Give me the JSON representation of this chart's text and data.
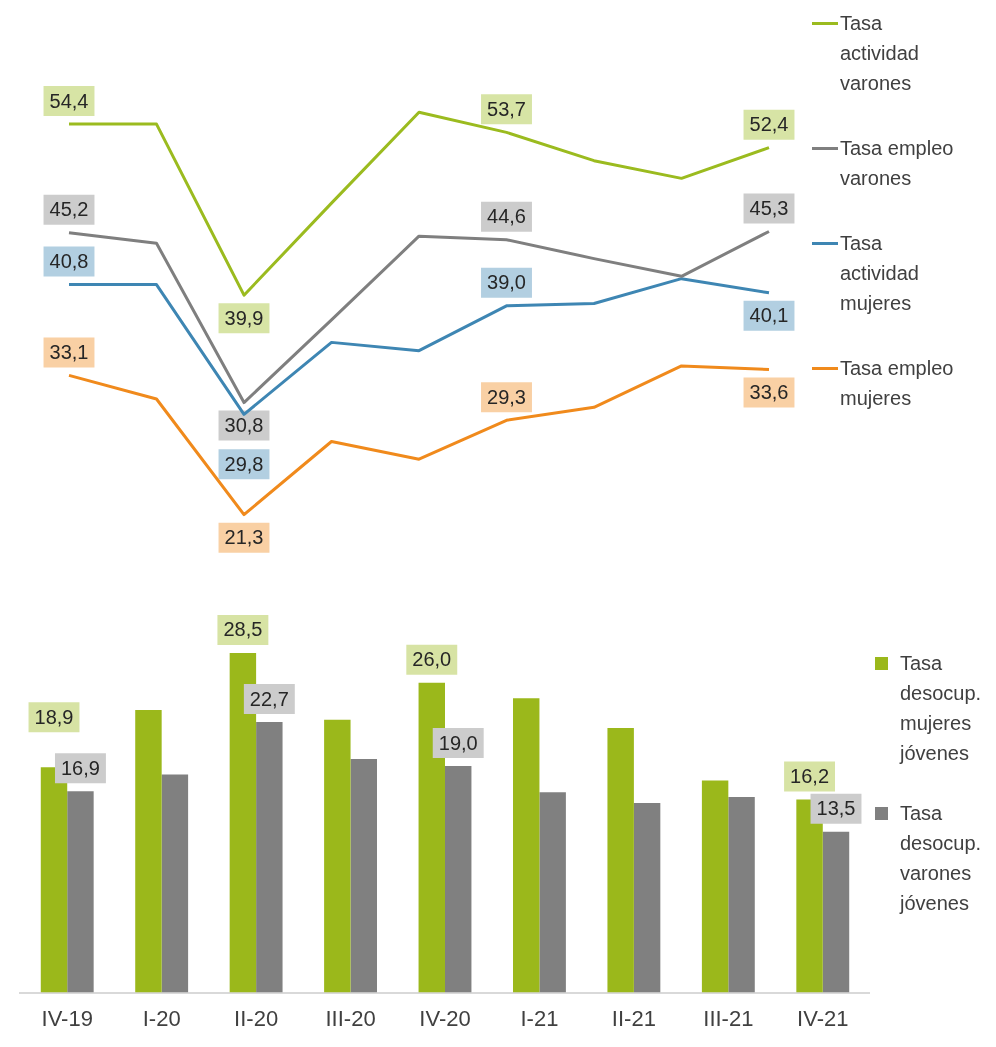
{
  "chart_data": [
    {
      "type": "line",
      "categories": [
        null,
        null,
        null,
        null,
        null,
        null,
        null,
        null,
        null
      ],
      "tick_labels": false,
      "grid": false,
      "legend": "right",
      "marker": "none",
      "series": [
        {
          "name": "Tasa actividad varones",
          "color": "#9bbb1f",
          "values": [
            54.4,
            54.4,
            39.9,
            47.7,
            55.4,
            53.7,
            51.3,
            49.8,
            52.4
          ],
          "value_labels": [
            "54,4",
            null,
            "39,9",
            null,
            null,
            "53,7",
            null,
            null,
            "52,4"
          ]
        },
        {
          "name": "Tasa empleo varones",
          "color": "#7f7f7f",
          "values": [
            45.2,
            44.3,
            30.8,
            37.8,
            44.9,
            44.6,
            43.0,
            41.5,
            45.3
          ],
          "value_labels": [
            "45,2",
            null,
            "30,8",
            null,
            null,
            "44,6",
            null,
            null,
            "45,3"
          ]
        },
        {
          "name": "Tasa actividad mujeres",
          "color": "#3e86b3",
          "values": [
            40.8,
            40.8,
            29.8,
            35.9,
            35.2,
            39.0,
            39.2,
            41.3,
            40.1
          ],
          "value_labels": [
            "40,8",
            null,
            "29,8",
            null,
            null,
            "39,0",
            null,
            null,
            "40,1"
          ]
        },
        {
          "name": "Tasa empleo mujeres",
          "color": "#f08a1c",
          "values": [
            33.1,
            31.1,
            21.3,
            27.5,
            26.0,
            29.3,
            30.4,
            33.9,
            33.6
          ],
          "value_labels": [
            "33,1",
            null,
            "21,3",
            null,
            null,
            "29,3",
            null,
            null,
            "33,6"
          ]
        }
      ]
    },
    {
      "type": "bar",
      "categories": [
        "IV-19",
        "I-20",
        "II-20",
        "III-20",
        "IV-20",
        "I-21",
        "II-21",
        "III-21",
        "IV-21"
      ],
      "tick_labels": "x",
      "grid": false,
      "legend": "right",
      "series": [
        {
          "name": "Tasa desocup. mujeres jóvenes",
          "color": "#9bb81b",
          "values": [
            18.9,
            23.7,
            28.5,
            22.9,
            26.0,
            24.7,
            22.2,
            17.8,
            16.2
          ],
          "value_labels": [
            "18,9",
            null,
            "28,5",
            null,
            "26,0",
            null,
            null,
            null,
            "16,2"
          ]
        },
        {
          "name": "Tasa desocup. varones jóvenes",
          "color": "#808080",
          "values": [
            16.9,
            18.3,
            22.7,
            19.6,
            19.0,
            16.8,
            15.9,
            16.4,
            13.5
          ],
          "value_labels": [
            "16,9",
            null,
            "22,7",
            null,
            "19,0",
            null,
            null,
            null,
            "13,5"
          ]
        }
      ]
    }
  ]
}
